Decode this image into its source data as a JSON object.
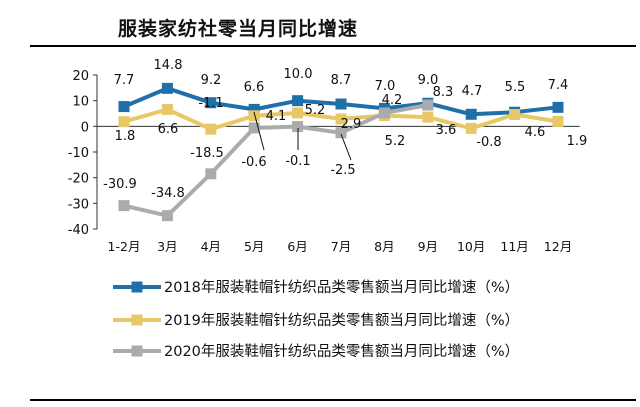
{
  "chart_data": {
    "type": "line",
    "title": "服装家纺社零当月同比增速",
    "xlabel": "",
    "ylabel": "",
    "categories": [
      "1-2月",
      "3月",
      "4月",
      "5月",
      "6月",
      "7月",
      "8月",
      "9月",
      "10月",
      "11月",
      "12月"
    ],
    "ylim": [
      -40,
      20
    ],
    "yticks": [
      -40,
      -30,
      -20,
      -10,
      0,
      10,
      20
    ],
    "grid": false,
    "legend_position": "bottom",
    "series": [
      {
        "name": "2018年服装鞋帽针纺织品类零售额当月同比增速（%）",
        "color": "#1F6FA8",
        "values": [
          7.7,
          14.8,
          9.2,
          6.6,
          10.0,
          8.7,
          7.0,
          9.0,
          4.7,
          5.5,
          7.4
        ]
      },
      {
        "name": "2019年服装鞋帽针纺织品类零售额当月同比增速（%）",
        "color": "#E8C766",
        "values": [
          1.8,
          6.6,
          -1.1,
          4.1,
          5.2,
          2.9,
          4.2,
          3.6,
          -0.8,
          4.6,
          1.9
        ]
      },
      {
        "name": "2020年服装鞋帽针纺织品类零售额当月同比增速（%）",
        "color": "#ABABAB",
        "values": [
          -30.9,
          -34.8,
          -18.5,
          -0.6,
          -0.1,
          -2.5,
          5.2,
          8.3,
          null,
          null,
          null
        ]
      }
    ],
    "annotations": [
      {
        "text": "7.7"
      },
      {
        "text": "14.8"
      },
      {
        "text": "9.2"
      },
      {
        "text": "6.6"
      },
      {
        "text": "10.0"
      },
      {
        "text": "8.7"
      },
      {
        "text": "7.0"
      },
      {
        "text": "9.0"
      },
      {
        "text": "4.7"
      },
      {
        "text": "5.5"
      },
      {
        "text": "7.4"
      },
      {
        "text": "1.8"
      },
      {
        "text": "6.6"
      },
      {
        "text": "-1.1"
      },
      {
        "text": "4.1"
      },
      {
        "text": "5.2"
      },
      {
        "text": "2.9"
      },
      {
        "text": "4.2"
      },
      {
        "text": "3.6"
      },
      {
        "text": "-0.8"
      },
      {
        "text": "4.6"
      },
      {
        "text": "1.9"
      },
      {
        "text": "-30.9"
      },
      {
        "text": "-34.8"
      },
      {
        "text": "-18.5"
      },
      {
        "text": "-0.6"
      },
      {
        "text": "-0.1"
      },
      {
        "text": "-2.5"
      },
      {
        "text": "5.2"
      },
      {
        "text": "8.3"
      }
    ]
  }
}
